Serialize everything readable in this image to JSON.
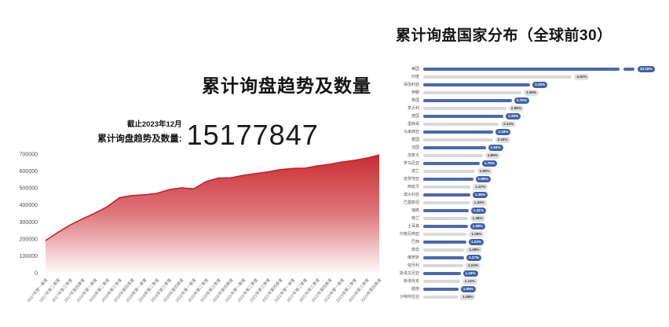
{
  "left_chart_section": {
    "title": "累计询盘趋势及数量",
    "as_of": "截止2023年12月",
    "total_label": "累计询盘趋势及数量:",
    "total": "15177847"
  },
  "right_chart_section": {
    "title": "累计询盘国家分布（全球前30）"
  },
  "colors": {
    "area_red": "#c9252c",
    "area_line_red": "#c1242b",
    "bar_blue": "#4a69ae",
    "badge_blue": "#3f61aa",
    "bar_gray": "#d9d9d9",
    "badge_gray": "#e0e0e0",
    "axis_text": "#555555"
  },
  "chart_data": [
    {
      "type": "area",
      "title": "累计询盘趋势及数量",
      "note": "截止2023年12月",
      "total_label": "累计询盘趋势及数量:",
      "total": "15177847",
      "xlabel": "",
      "ylabel": "",
      "ylim": [
        0,
        700000
      ],
      "yticks": [
        0,
        100000,
        200000,
        300000,
        400000,
        500000,
        600000,
        700000
      ],
      "grid": false,
      "legend": "none",
      "x": [
        "2017年第一季度",
        "2017年第二季度",
        "2017年第三季度",
        "2017年第四季度",
        "2018年第一季度",
        "2018年第二季度",
        "2018年第三季度",
        "2018年第四季度",
        "2019年第一季度",
        "2019年第二季度",
        "2019年第三季度",
        "2019年第四季度",
        "2020年第一季度",
        "2020年第二季度",
        "2020年第三季度",
        "2020年第四季度",
        "2021年第一季度",
        "2021年第二季度",
        "2021年第三季度",
        "2021年第四季度",
        "2022年第一季度",
        "2022年第二季度",
        "2022年第三季度",
        "2022年第四季度",
        "2023年第一季度",
        "2023年第二季度",
        "2023年第三季度",
        "2023年第四季度"
      ],
      "values": [
        190000,
        238000,
        282000,
        318000,
        352000,
        390000,
        443000,
        455000,
        460000,
        468000,
        490000,
        500000,
        495000,
        538000,
        558000,
        560000,
        575000,
        585000,
        595000,
        608000,
        615000,
        617000,
        630000,
        640000,
        653000,
        663000,
        677000,
        695000
      ]
    },
    {
      "type": "bar",
      "orientation": "horizontal",
      "title": "累计询盘国家分布（全球前30）",
      "xlabel": "",
      "ylabel": "",
      "legend": "none",
      "first_bar_axis_break": true,
      "categories": [
        "美国",
        "印度",
        "保加利亚",
        "伊朗",
        "英国",
        "意大利",
        "德国",
        "墨西哥",
        "马来西亚",
        "泰国",
        "法国",
        "加拿大",
        "罗马尼亚",
        "波兰",
        "克罗地亚",
        "西班牙",
        "澳大利亚",
        "巴基斯坦",
        "瑞典",
        "荷兰",
        "土耳其",
        "印度尼西亚",
        "巴西",
        "南非",
        "俄罗斯",
        "匈牙利",
        "斯洛文尼亚",
        "斯洛伐克",
        "越南",
        "沙特阿拉伯"
      ],
      "values": [
        10.16,
        4.62,
        3.32,
        3.05,
        2.75,
        2.58,
        2.49,
        2.34,
        2.18,
        2.16,
        1.94,
        1.85,
        1.75,
        1.6,
        1.55,
        1.47,
        1.46,
        1.43,
        1.41,
        1.38,
        1.38,
        1.35,
        1.34,
        1.28,
        1.27,
        1.24,
        1.16,
        1.14,
        1.09,
        1.08
      ],
      "labels": [
        "10.16%",
        "4.62%",
        "3.32%",
        "3.05%",
        "2.75%",
        "2.58%",
        "2.49%",
        "2.34%",
        "2.18%",
        "2.16%",
        "1.94%",
        "1.85%",
        "1.75%",
        "1.60%",
        "1.55%",
        "1.47%",
        "1.46%",
        "1.43%",
        "1.41%",
        "1.38%",
        "1.38%",
        "1.35%",
        "1.34%",
        "1.28%",
        "1.27%",
        "1.24%",
        "1.16%",
        "1.14%",
        "1.09%",
        "1.08%"
      ]
    }
  ]
}
